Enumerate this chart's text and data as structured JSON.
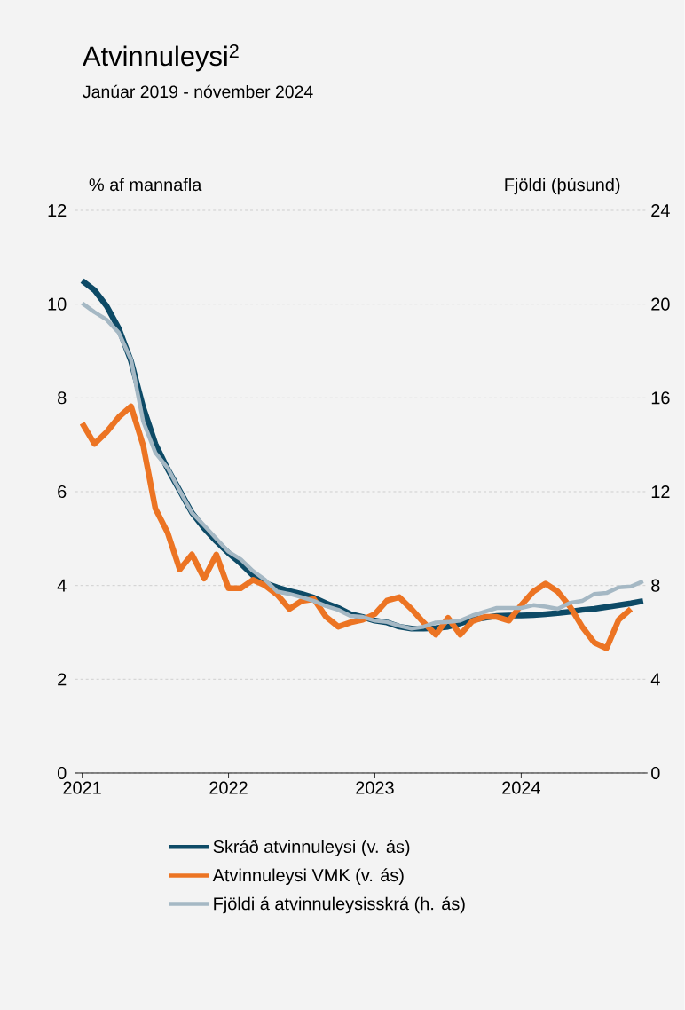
{
  "chart_data": {
    "type": "line",
    "title": "Atvinnuleysi$^{2}$",
    "subtitle": "Janúar 2019 - nóvember 2024",
    "ylabel": "% af mannafla",
    "y2label": "Fjöldi (þúsund)",
    "x": [
      "2021-01",
      "2021-02",
      "2021-03",
      "2021-04",
      "2021-05",
      "2021-06",
      "2021-07",
      "2021-08",
      "2021-09",
      "2021-10",
      "2021-11",
      "2021-12",
      "2022-01",
      "2022-02",
      "2022-03",
      "2022-04",
      "2022-05",
      "2022-06",
      "2022-07",
      "2022-08",
      "2022-09",
      "2022-10",
      "2022-11",
      "2022-12",
      "2023-01",
      "2023-02",
      "2023-03",
      "2023-04",
      "2023-05",
      "2023-06",
      "2023-07",
      "2023-08",
      "2023-09",
      "2023-10",
      "2023-11",
      "2023-12",
      "2024-01",
      "2024-02",
      "2024-03",
      "2024-04",
      "2024-05",
      "2024-06",
      "2024-07",
      "2024-08",
      "2024-09",
      "2024-10",
      "2024-11"
    ],
    "xlim": [
      "2020-12-14",
      "2024-11-12"
    ],
    "xticks": [
      "2021",
      "2022",
      "2023",
      "2024"
    ],
    "ylim": [
      0,
      12
    ],
    "yticks": [
      0,
      2,
      4,
      6,
      8,
      10,
      12
    ],
    "y2lim": [
      0,
      24
    ],
    "y2ticks": [
      0,
      4,
      8,
      12,
      16,
      20,
      24
    ],
    "grid": "y",
    "legend": "bottom",
    "marker": "none",
    "line_style": "solid",
    "series": [
      {
        "name": "Skráð atvinnuleysi (v. ás)",
        "color": "#0d4a66",
        "values": [
          10.5,
          10.3,
          9.96,
          9.48,
          8.79,
          7.8,
          7.02,
          6.49,
          6.02,
          5.55,
          5.22,
          4.94,
          4.69,
          4.47,
          4.22,
          4.05,
          3.96,
          3.88,
          3.82,
          3.74,
          3.62,
          3.52,
          3.39,
          3.33,
          3.25,
          3.21,
          3.12,
          3.08,
          3.08,
          3.09,
          3.12,
          3.19,
          3.27,
          3.31,
          3.35,
          3.36,
          3.36,
          3.37,
          3.39,
          3.41,
          3.44,
          3.48,
          3.5,
          3.54,
          3.58,
          3.62,
          3.67
        ]
      },
      {
        "name": "Atvinnuleysi VMK (v. ás)",
        "color": "#ec7423",
        "values": [
          7.46,
          7.02,
          7.27,
          7.59,
          7.82,
          6.99,
          5.64,
          5.13,
          4.34,
          4.66,
          4.15,
          4.66,
          3.94,
          3.94,
          4.12,
          4.0,
          3.8,
          3.5,
          3.67,
          3.71,
          3.33,
          3.12,
          3.21,
          3.27,
          3.39,
          3.68,
          3.75,
          3.5,
          3.21,
          2.95,
          3.31,
          2.95,
          3.24,
          3.33,
          3.33,
          3.25,
          3.58,
          3.87,
          4.04,
          3.87,
          3.55,
          3.12,
          2.78,
          2.66,
          3.27,
          3.5,
          null
        ]
      },
      {
        "name": "Fjöldi á atvinnuleysisskrá (h. ás)",
        "color": "#a5b8c4",
        "axis": "y2",
        "values": [
          20.04,
          19.66,
          19.34,
          18.78,
          17.64,
          15.0,
          13.66,
          13.02,
          12.04,
          11.1,
          10.56,
          10.0,
          9.44,
          9.12,
          8.62,
          8.24,
          7.74,
          7.64,
          7.5,
          7.34,
          7.12,
          6.96,
          6.7,
          6.66,
          6.5,
          6.44,
          6.28,
          6.16,
          6.24,
          6.42,
          6.44,
          6.5,
          6.72,
          6.88,
          7.04,
          7.04,
          7.04,
          7.16,
          7.1,
          7.0,
          7.26,
          7.34,
          7.64,
          7.68,
          7.92,
          7.96,
          8.18
        ]
      }
    ]
  }
}
